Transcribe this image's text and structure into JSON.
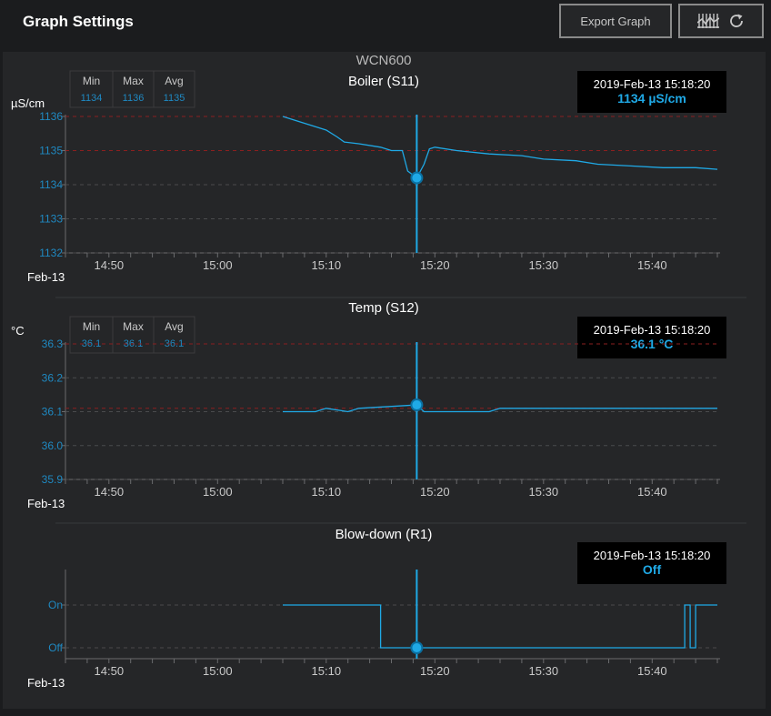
{
  "header": {
    "title": "Graph Settings",
    "export_label": "Export Graph",
    "refresh_icons": [
      "chart-grid-icon",
      "refresh-icon"
    ]
  },
  "device_title": "WCN600",
  "colors": {
    "line": "#1fa9e6",
    "limit": "#8b1f1f",
    "grid": "#4a4b4d",
    "tick_value": "#1f89c2",
    "background": "#252628"
  },
  "chart_data": [
    {
      "type": "line",
      "title": "Boiler (S11)",
      "ylabel": "µS/cm",
      "date_label": "Feb-13",
      "stats": {
        "headers": [
          "Min",
          "Max",
          "Avg"
        ],
        "values": [
          "1134",
          "1136",
          "1135"
        ]
      },
      "readout": {
        "time": "2019-Feb-13 15:18:20",
        "value": "1134 µS/cm"
      },
      "cursor": {
        "time": "15:18:20",
        "value": 1134.2
      },
      "x_range": [
        "14:46",
        "15:46"
      ],
      "x_ticks": [
        "14:50",
        "15:00",
        "15:10",
        "15:20",
        "15:30",
        "15:40"
      ],
      "y_ticks": [
        "1132",
        "1133",
        "1134",
        "1135",
        "1136"
      ],
      "ylim": [
        1132,
        1136
      ],
      "limit_lines": [
        1136,
        1135.0
      ],
      "grid": true,
      "series": [
        {
          "points": [
            [
              "15:06",
              1136.0
            ],
            [
              "15:07",
              1135.9
            ],
            [
              "15:08",
              1135.8
            ],
            [
              "15:09",
              1135.7
            ],
            [
              "15:10",
              1135.6
            ],
            [
              "15:11",
              1135.4
            ],
            [
              "15:11:40",
              1135.25
            ],
            [
              "15:13",
              1135.2
            ],
            [
              "15:15",
              1135.1
            ],
            [
              "15:16",
              1135.0
            ],
            [
              "15:17",
              1135.0
            ],
            [
              "15:17:30",
              1134.4
            ],
            [
              "15:18:20",
              1134.2
            ],
            [
              "15:19",
              1134.6
            ],
            [
              "15:19:30",
              1135.05
            ],
            [
              "15:20",
              1135.1
            ],
            [
              "15:22",
              1135.0
            ],
            [
              "15:25",
              1134.9
            ],
            [
              "15:28",
              1134.85
            ],
            [
              "15:30",
              1134.75
            ],
            [
              "15:33",
              1134.7
            ],
            [
              "15:35",
              1134.6
            ],
            [
              "15:38",
              1134.55
            ],
            [
              "15:41",
              1134.5
            ],
            [
              "15:44",
              1134.5
            ],
            [
              "15:46",
              1134.45
            ]
          ]
        }
      ]
    },
    {
      "type": "line",
      "title": "Temp (S12)",
      "ylabel": "°C",
      "date_label": "Feb-13",
      "stats": {
        "headers": [
          "Min",
          "Max",
          "Avg"
        ],
        "values": [
          "36.1",
          "36.1",
          "36.1"
        ]
      },
      "readout": {
        "time": "2019-Feb-13 15:18:20",
        "value": "36.1 °C"
      },
      "cursor": {
        "time": "15:18:20",
        "value": 36.12
      },
      "x_range": [
        "14:46",
        "15:46"
      ],
      "x_ticks": [
        "14:50",
        "15:00",
        "15:10",
        "15:20",
        "15:30",
        "15:40"
      ],
      "y_ticks": [
        "35.9",
        "36.0",
        "36.1",
        "36.2",
        "36.3"
      ],
      "ylim": [
        35.9,
        36.3
      ],
      "limit_lines": [
        36.3,
        36.11
      ],
      "grid": true,
      "series": [
        {
          "points": [
            [
              "15:06",
              36.1
            ],
            [
              "15:09",
              36.1
            ],
            [
              "15:10",
              36.11
            ],
            [
              "15:12",
              36.1
            ],
            [
              "15:13",
              36.11
            ],
            [
              "15:18:20",
              36.12
            ],
            [
              "15:19",
              36.1
            ],
            [
              "15:25",
              36.1
            ],
            [
              "15:26",
              36.11
            ],
            [
              "15:46",
              36.11
            ]
          ]
        }
      ]
    },
    {
      "type": "line",
      "title": "Blow-down (R1)",
      "ylabel": "",
      "date_label": "Feb-13",
      "readout": {
        "time": "2019-Feb-13 15:18:20",
        "value": "Off"
      },
      "cursor": {
        "time": "15:18:20",
        "value": 0
      },
      "x_range": [
        "14:46",
        "15:46"
      ],
      "x_ticks": [
        "14:50",
        "15:00",
        "15:10",
        "15:20",
        "15:30",
        "15:40"
      ],
      "y_ticks": [
        "Off",
        "On"
      ],
      "ylim": [
        0,
        1
      ],
      "grid": true,
      "series": [
        {
          "points": [
            [
              "15:06",
              1
            ],
            [
              "15:15",
              1
            ],
            [
              "15:15",
              0
            ],
            [
              "15:43",
              0
            ],
            [
              "15:43",
              1
            ],
            [
              "15:43:30",
              1
            ],
            [
              "15:43:30",
              0
            ],
            [
              "15:44",
              0
            ],
            [
              "15:44",
              1
            ],
            [
              "15:46",
              1
            ]
          ]
        }
      ]
    }
  ]
}
